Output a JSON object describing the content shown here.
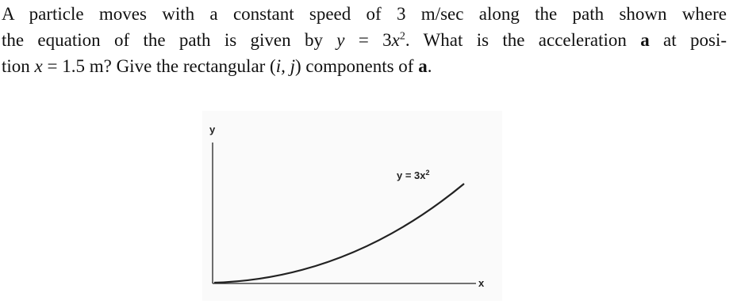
{
  "problem": {
    "lines": [
      [
        "A particle moves with a constant speed of 3 m/sec along the path shown where"
      ],
      [
        "the equation of the path is given by ",
        "y",
        " = 3",
        "x",
        "2",
        ". What is the acceleration ",
        "a",
        " at posi-"
      ],
      [
        "tion ",
        "x",
        " = 1.5 m? Give the rectangular (",
        "i, j",
        ") components of ",
        "a",
        "."
      ]
    ]
  },
  "figure": {
    "y_axis_label": "y",
    "x_axis_label": "x",
    "curve_label": [
      "y = 3x",
      "2"
    ]
  }
}
